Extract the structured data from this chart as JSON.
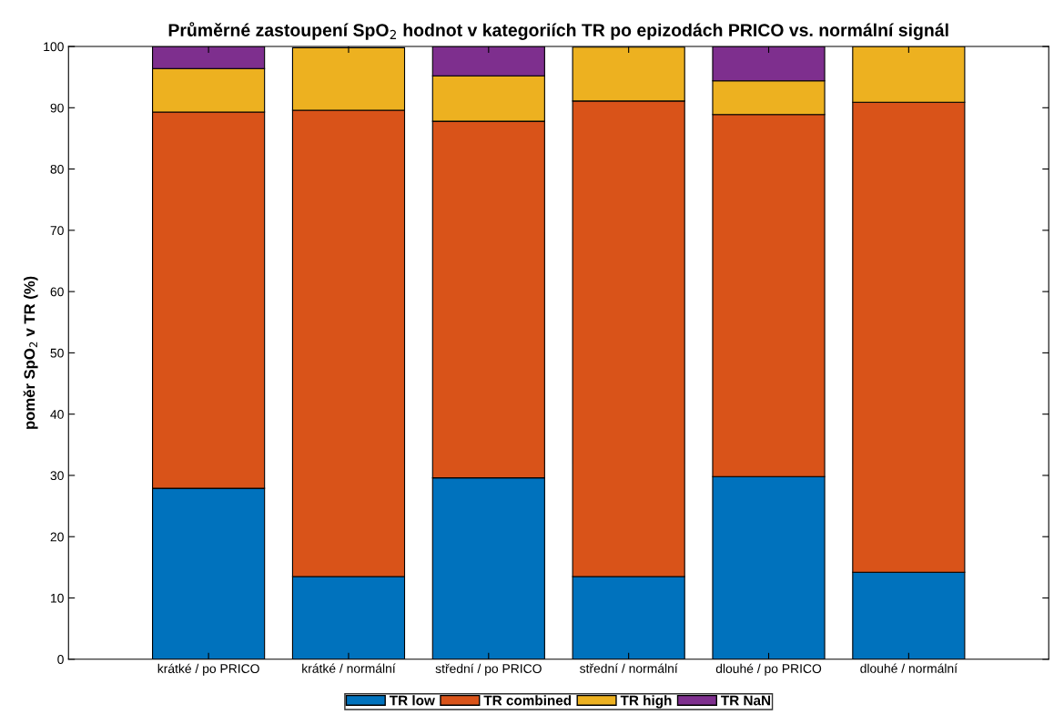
{
  "chart_data": {
    "type": "bar",
    "stacked": true,
    "title": "Průměrné zastoupení SpO$_{2}$ hodnot v kategoriích TR po epizodách PRICO vs. normální signál",
    "ylabel": "poměr SpO$_{2}$ v TR (%)",
    "categories": [
      "krátké / po PRICO",
      "krátké / normální",
      "střední / po PRICO",
      "střední / normální",
      "dlouhé / po PRICO",
      "dlouhé / normální"
    ],
    "series": [
      {
        "name": "TR low",
        "color": "#0072bd",
        "values": [
          27.9,
          13.5,
          29.6,
          13.5,
          29.8,
          14.2
        ]
      },
      {
        "name": "TR combined",
        "color": "#d95319",
        "values": [
          61.4,
          76.1,
          58.2,
          77.6,
          59.1,
          76.7
        ]
      },
      {
        "name": "TR high",
        "color": "#edb120",
        "values": [
          7.1,
          10.2,
          7.4,
          8.8,
          5.5,
          9.1
        ]
      },
      {
        "name": "TR NaN",
        "color": "#7e2f8e",
        "values": [
          3.6,
          null,
          4.8,
          null,
          5.6,
          null
        ]
      }
    ],
    "ylim": [
      0,
      100
    ],
    "yticks": [
      0,
      10,
      20,
      30,
      40,
      50,
      60,
      70,
      80,
      90,
      100
    ],
    "legend": "bottom",
    "grid": false
  }
}
